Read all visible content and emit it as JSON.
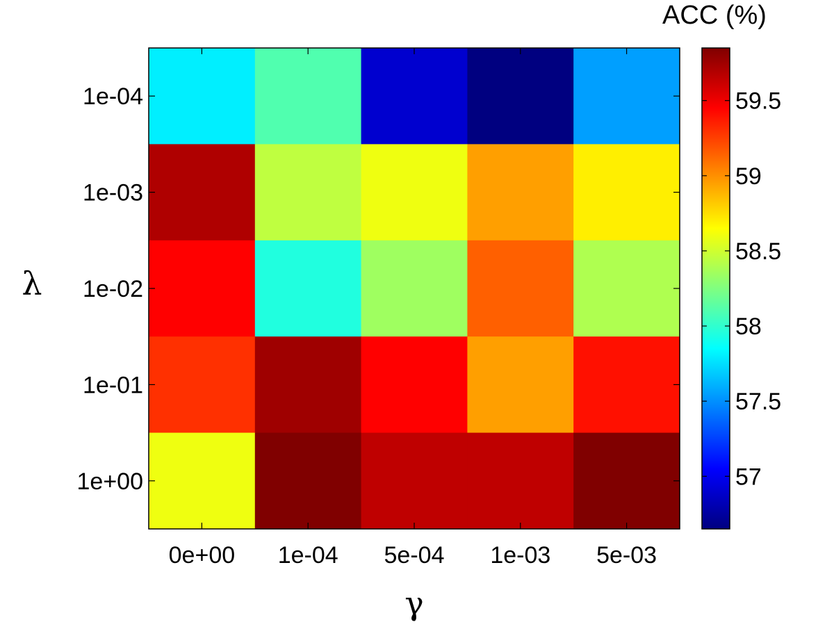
{
  "chart_data": {
    "type": "heatmap",
    "title": "",
    "xlabel": "γ",
    "ylabel": "λ",
    "x_categories": [
      "0e+00",
      "1e-04",
      "5e-04",
      "1e-03",
      "5e-03"
    ],
    "y_categories": [
      "1e-04",
      "1e-03",
      "1e-02",
      "1e-01",
      "1e+00"
    ],
    "values": [
      [
        57.8,
        58.1,
        56.9,
        56.65,
        57.55
      ],
      [
        59.7,
        58.45,
        58.6,
        58.95,
        58.7
      ],
      [
        59.45,
        57.95,
        58.35,
        59.15,
        58.4
      ],
      [
        59.3,
        59.75,
        59.45,
        58.95,
        59.4
      ],
      [
        58.6,
        59.85,
        59.65,
        59.65,
        59.85
      ]
    ],
    "colorbar": {
      "title": "ACC (%)",
      "range": [
        56.65,
        59.85
      ],
      "ticks": [
        57,
        57.5,
        58,
        58.5,
        59,
        59.5
      ],
      "tick_labels": [
        "57",
        "57.5",
        "58",
        "58.5",
        "59",
        "59.5"
      ],
      "colormap": "jet"
    }
  }
}
